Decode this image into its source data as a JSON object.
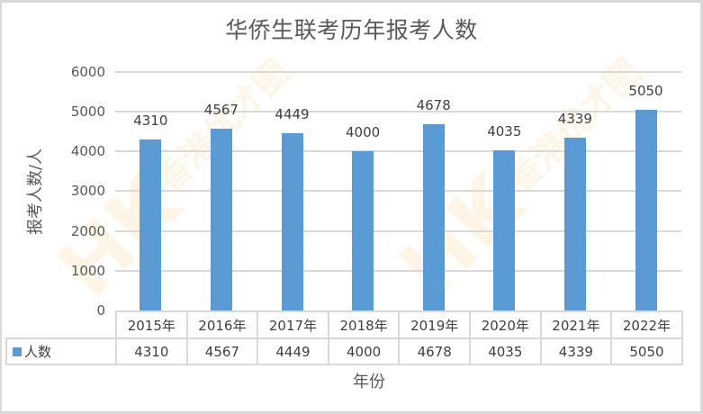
{
  "title": "华侨生联考历年报考人数",
  "y_axis_label": "报考人数/人",
  "x_axis_label": "年份",
  "y_ticks": [
    "6000",
    "5000",
    "4000",
    "3000",
    "2000",
    "1000",
    "0"
  ],
  "series_name": "人数",
  "series_color": "#5b9bd5",
  "categories": [
    "2015年",
    "2016年",
    "2017年",
    "2018年",
    "2019年",
    "2020年",
    "2021年",
    "2022年"
  ],
  "values": [
    "4310",
    "4567",
    "4449",
    "4000",
    "4678",
    "4035",
    "4339",
    "5050"
  ],
  "watermark": {
    "text": "香港优才圈",
    "logo": "HK"
  },
  "chart_data": {
    "type": "bar",
    "title": "华侨生联考历年报考人数",
    "xlabel": "年份",
    "ylabel": "报考人数/人",
    "categories": [
      "2015年",
      "2016年",
      "2017年",
      "2018年",
      "2019年",
      "2020年",
      "2021年",
      "2022年"
    ],
    "series": [
      {
        "name": "人数",
        "values": [
          4310,
          4567,
          4449,
          4000,
          4678,
          4035,
          4339,
          5050
        ]
      }
    ],
    "ylim": [
      0,
      6000
    ],
    "yticks": [
      0,
      1000,
      2000,
      3000,
      4000,
      5000,
      6000
    ],
    "grid": true,
    "legend_position": "data-table",
    "data_labels": true
  }
}
